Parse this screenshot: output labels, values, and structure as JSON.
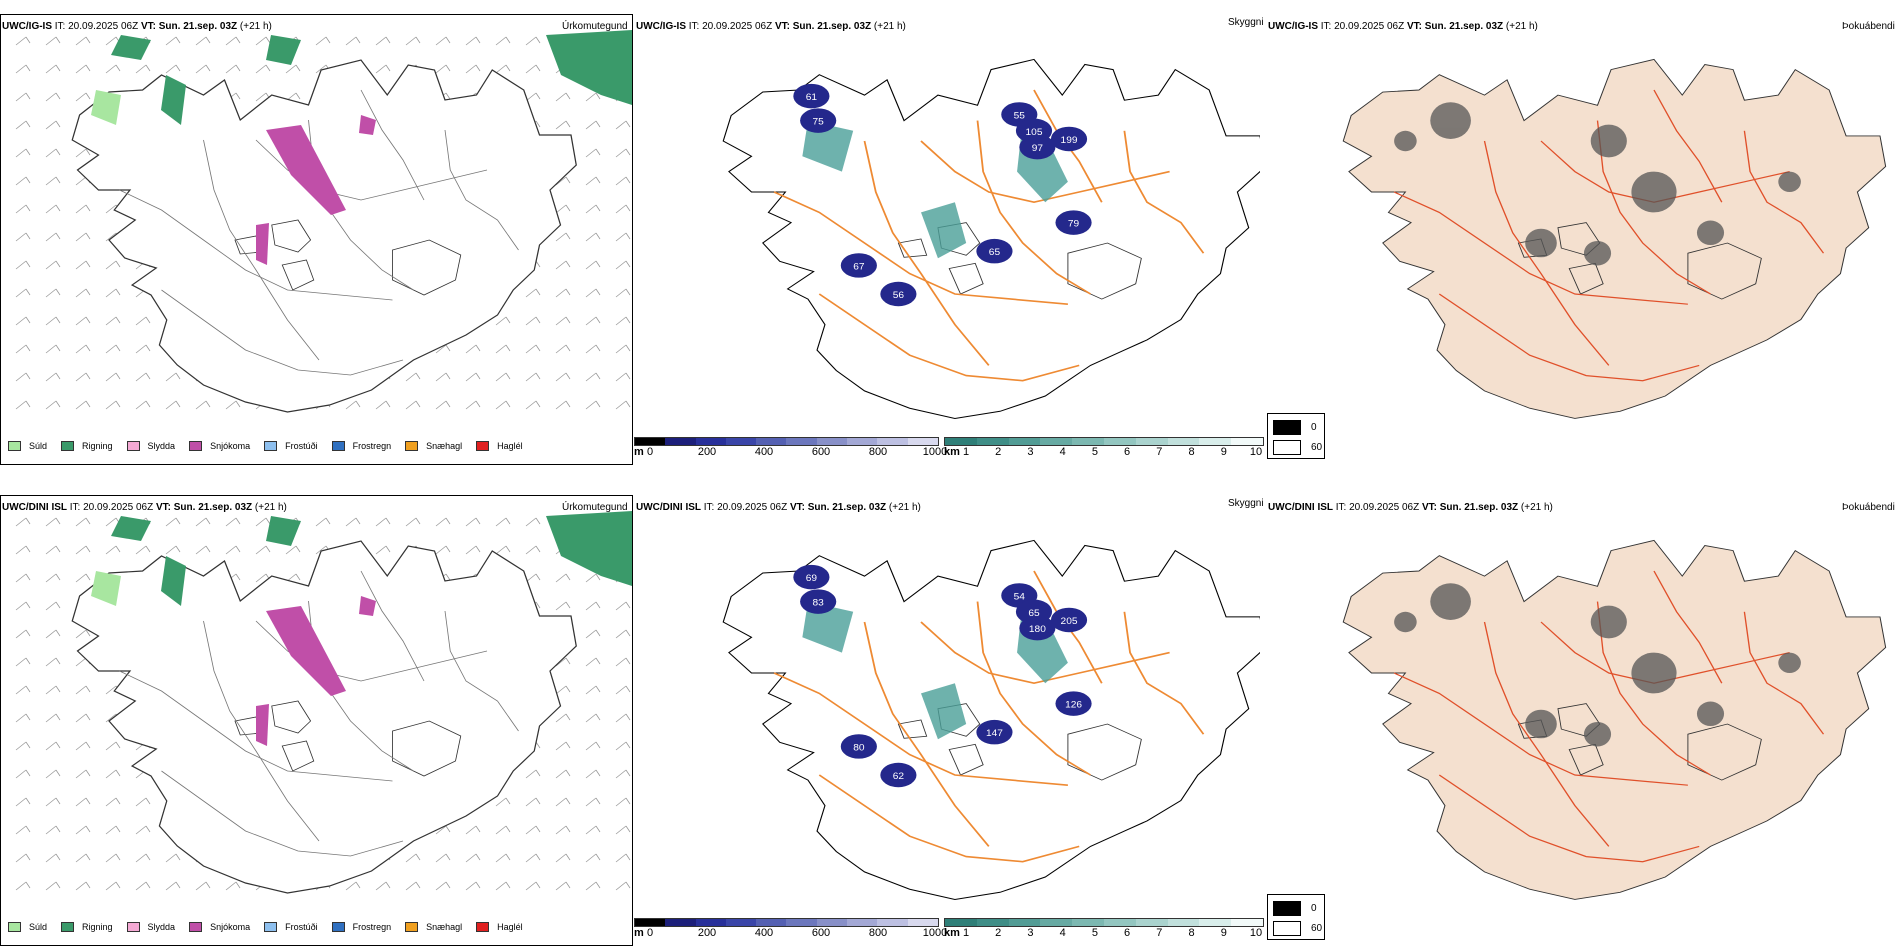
{
  "colors": {
    "precip_green": "#3a9a6a",
    "precip_light_green": "#a8e6a0",
    "precip_magenta": "#c04fa8",
    "snow_depth_blue": "#24288c",
    "visibility_teal": "#4a9f98",
    "road_orange": "#ee8a33",
    "land_peach": "#f4e0cf",
    "cloud_gray": "#555555"
  },
  "rows": [
    {
      "model": "UWC/IG-IS",
      "it_label": "IT: 20.09.2025 06Z",
      "vt_label": "VT:",
      "vt_value": "Sun. 21.sep. 03Z",
      "lead": "(+21 h)",
      "panel1_name": "Úrkomutegund",
      "panel2_name": "Skyggni",
      "panel3_name": "Þokuábendi",
      "snow_labels": [
        "61",
        "75",
        "67",
        "56",
        "55",
        "97",
        "79",
        "65",
        "199",
        "105"
      ],
      "legend_items": [
        {
          "label": "Súld",
          "color": "#a8e6a0"
        },
        {
          "label": "Rigning",
          "color": "#3a9a6a"
        },
        {
          "label": "Slydda",
          "color": "#f4a9d4"
        },
        {
          "label": "Snjókoma",
          "color": "#c04fa8"
        },
        {
          "label": "Frostúði",
          "color": "#8ec0ef"
        },
        {
          "label": "Frostregn",
          "color": "#3070c0"
        },
        {
          "label": "Snæhagl",
          "color": "#f0a020"
        },
        {
          "label": "Haglél",
          "color": "#e02020"
        }
      ],
      "height_unit": "m",
      "height_ticks": [
        "0",
        "200",
        "400",
        "600",
        "800",
        "1000"
      ],
      "vis_unit": "km",
      "vis_ticks": [
        "1",
        "2",
        "3",
        "4",
        "5",
        "6",
        "7",
        "8",
        "9",
        "10"
      ],
      "cloud_legend": [
        "0",
        "60"
      ]
    },
    {
      "model": "UWC/DINI ISL",
      "it_label": "IT: 20.09.2025 06Z",
      "vt_label": "VT:",
      "vt_value": "Sun. 21.sep. 03Z",
      "lead": "(+21 h)",
      "panel1_name": "Úrkomutegund",
      "panel2_name": "Skyggni",
      "panel3_name": "Þokuábendi",
      "snow_labels": [
        "69",
        "83",
        "80",
        "62",
        "54",
        "180",
        "126",
        "147",
        "205",
        "65"
      ],
      "legend_items": [
        {
          "label": "Súld",
          "color": "#a8e6a0"
        },
        {
          "label": "Rigning",
          "color": "#3a9a6a"
        },
        {
          "label": "Slydda",
          "color": "#f4a9d4"
        },
        {
          "label": "Snjókoma",
          "color": "#c04fa8"
        },
        {
          "label": "Frostúði",
          "color": "#8ec0ef"
        },
        {
          "label": "Frostregn",
          "color": "#3070c0"
        },
        {
          "label": "Snæhagl",
          "color": "#f0a020"
        },
        {
          "label": "Haglél",
          "color": "#e02020"
        }
      ],
      "height_unit": "m",
      "height_ticks": [
        "0",
        "200",
        "400",
        "600",
        "800",
        "1000"
      ],
      "vis_unit": "km",
      "vis_ticks": [
        "1",
        "2",
        "3",
        "4",
        "5",
        "6",
        "7",
        "8",
        "9",
        "10"
      ],
      "cloud_legend": [
        "0",
        "60"
      ]
    }
  ]
}
